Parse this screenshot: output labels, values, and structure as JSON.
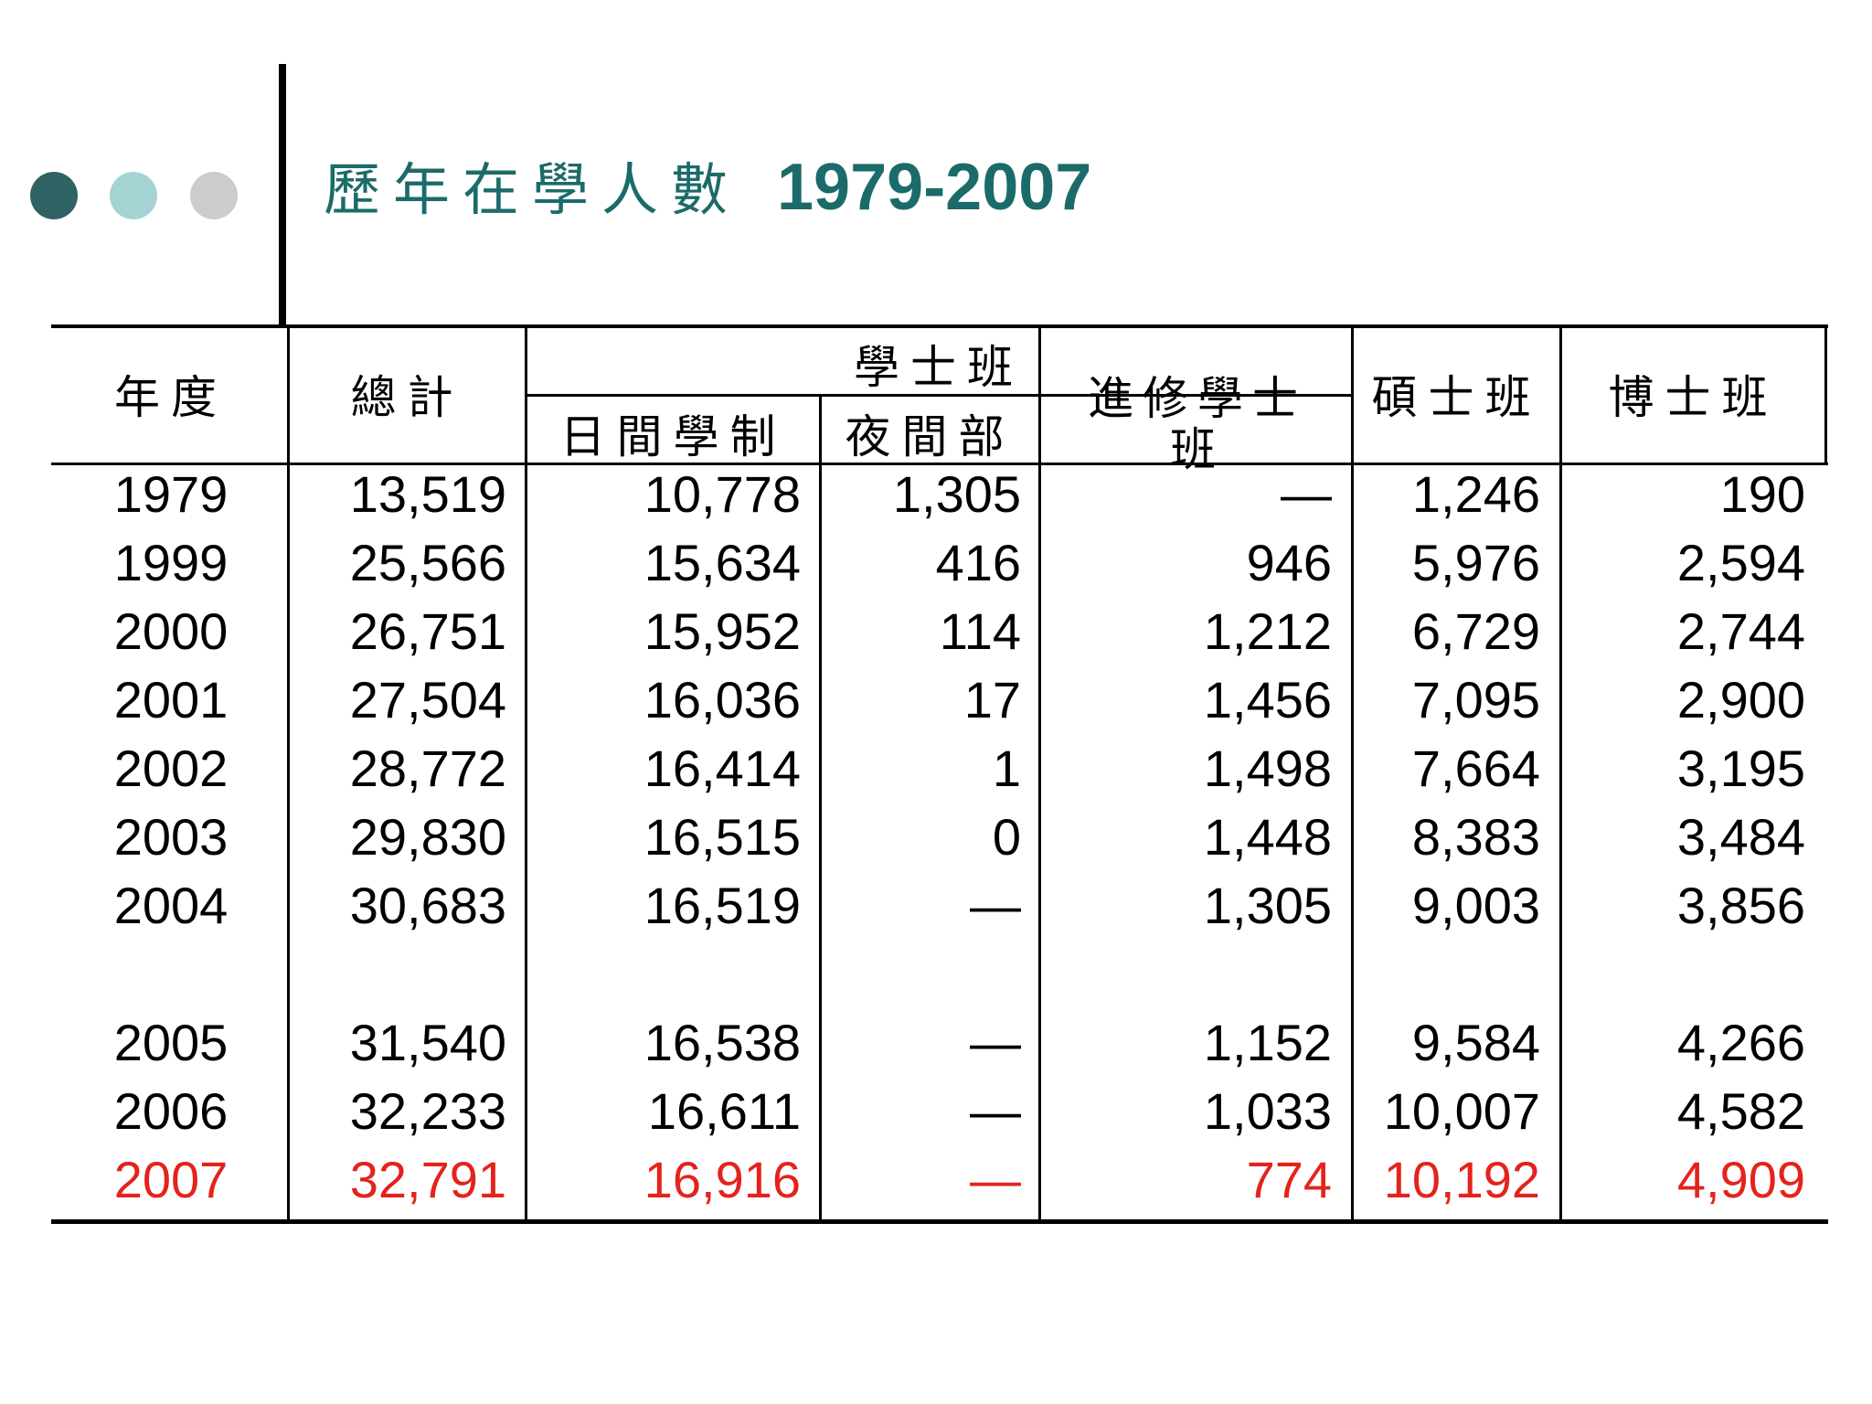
{
  "title": {
    "main": "歷年在學人數",
    "years": "1979-2007"
  },
  "colors": {
    "title": "#1b6b6a",
    "dot_dark": "#2f6363",
    "dot_light": "#a5d3d3",
    "dot_gray": "#cccccc",
    "highlight": "#e3231c"
  },
  "table": {
    "headers": {
      "year": "年度",
      "total": "總計",
      "bachelor_group": "學士班",
      "day": "日間學制",
      "night": "夜間部",
      "continuing": "進修學士班",
      "master": "碩士班",
      "doctor": "博士班"
    },
    "rows": [
      {
        "year": "1979",
        "total": "13,519",
        "day": "10,778",
        "night": "1,305",
        "continuing": "—",
        "master": "1,246",
        "doctor": "190"
      },
      {
        "year": "1999",
        "total": "25,566",
        "day": "15,634",
        "night": "416",
        "continuing": "946",
        "master": "5,976",
        "doctor": "2,594"
      },
      {
        "year": "2000",
        "total": "26,751",
        "day": "15,952",
        "night": "114",
        "continuing": "1,212",
        "master": "6,729",
        "doctor": "2,744"
      },
      {
        "year": "2001",
        "total": "27,504",
        "day": "16,036",
        "night": "17",
        "continuing": "1,456",
        "master": "7,095",
        "doctor": "2,900"
      },
      {
        "year": "2002",
        "total": "28,772",
        "day": "16,414",
        "night": "1",
        "continuing": "1,498",
        "master": "7,664",
        "doctor": "3,195"
      },
      {
        "year": "2003",
        "total": "29,830",
        "day": "16,515",
        "night": "0",
        "continuing": "1,448",
        "master": "8,383",
        "doctor": "3,484"
      },
      {
        "year": "2004",
        "total": "30,683",
        "day": "16,519",
        "night": "—",
        "continuing": "1,305",
        "master": "9,003",
        "doctor": "3,856"
      },
      {
        "year": "2005",
        "total": "31,540",
        "day": "16,538",
        "night": "—",
        "continuing": "1,152",
        "master": "9,584",
        "doctor": "4,266"
      },
      {
        "year": "2006",
        "total": "32,233",
        "day": "16,611",
        "night": "—",
        "continuing": "1,033",
        "master": "10,007",
        "doctor": "4,582"
      },
      {
        "year": "2007",
        "total": "32,791",
        "day": "16,916",
        "night": "—",
        "continuing": "774",
        "master": "10,192",
        "doctor": "4,909",
        "highlight": true
      }
    ]
  }
}
